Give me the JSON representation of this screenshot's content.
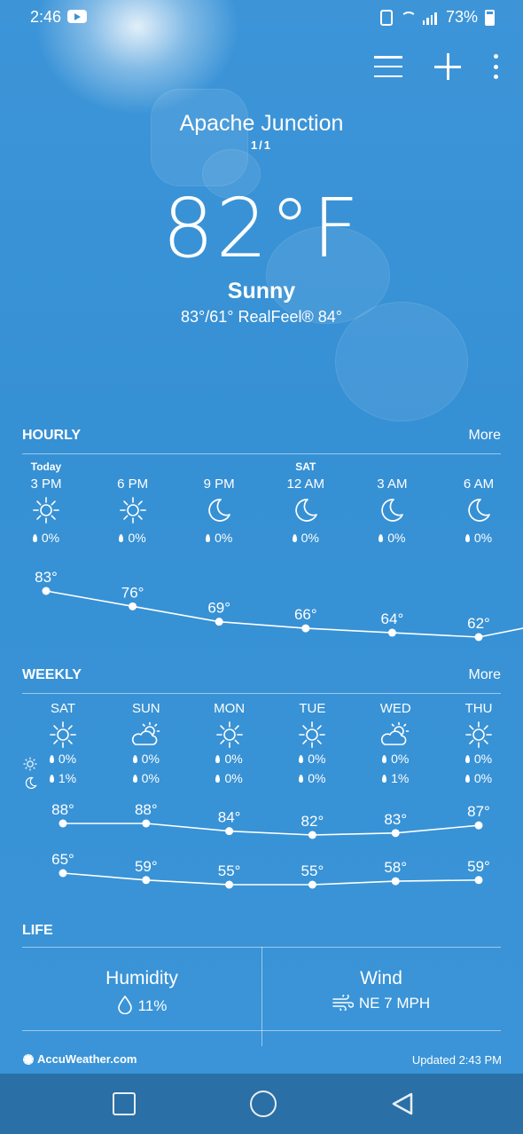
{
  "status_bar": {
    "time": "2:46",
    "battery": "73%"
  },
  "location": {
    "city": "Apache Junction",
    "pager": "1/1"
  },
  "current": {
    "temp": "82°F",
    "condition": "Sunny",
    "hilo_realfeel": "83°/61° RealFeel® 84°"
  },
  "hourly": {
    "title": "HOURLY",
    "more": "More",
    "items": [
      {
        "day": "Today",
        "time": "3 PM",
        "icon": "sun-icon",
        "precip": "0%",
        "temp": "83°",
        "value": 83
      },
      {
        "day": "",
        "time": "6 PM",
        "icon": "sun-icon",
        "precip": "0%",
        "temp": "76°",
        "value": 76
      },
      {
        "day": "",
        "time": "9 PM",
        "icon": "moon-icon",
        "precip": "0%",
        "temp": "69°",
        "value": 69
      },
      {
        "day": "SAT",
        "time": "12 AM",
        "icon": "moon-icon",
        "precip": "0%",
        "temp": "66°",
        "value": 66
      },
      {
        "day": "",
        "time": "3 AM",
        "icon": "moon-icon",
        "precip": "0%",
        "temp": "64°",
        "value": 64
      },
      {
        "day": "",
        "time": "6 AM",
        "icon": "moon-icon",
        "precip": "0%",
        "temp": "62°",
        "value": 62
      }
    ]
  },
  "weekly": {
    "title": "WEEKLY",
    "more": "More",
    "days": [
      {
        "day": "SAT",
        "icon": "sun-icon",
        "day_precip": "0%",
        "night_precip": "1%",
        "high": "88°",
        "low": "65°",
        "high_v": 88,
        "low_v": 65
      },
      {
        "day": "SUN",
        "icon": "partly-cloudy-icon",
        "day_precip": "0%",
        "night_precip": "0%",
        "high": "88°",
        "low": "59°",
        "high_v": 88,
        "low_v": 59
      },
      {
        "day": "MON",
        "icon": "sun-icon",
        "day_precip": "0%",
        "night_precip": "0%",
        "high": "84°",
        "low": "55°",
        "high_v": 84,
        "low_v": 55
      },
      {
        "day": "TUE",
        "icon": "sun-icon",
        "day_precip": "0%",
        "night_precip": "0%",
        "high": "82°",
        "low": "55°",
        "high_v": 82,
        "low_v": 55
      },
      {
        "day": "WED",
        "icon": "partly-cloudy-icon",
        "day_precip": "0%",
        "night_precip": "1%",
        "high": "83°",
        "low": "58°",
        "high_v": 83,
        "low_v": 58
      },
      {
        "day": "THU",
        "icon": "sun-icon",
        "day_precip": "0%",
        "night_precip": "0%",
        "high": "87°",
        "low": "59°",
        "high_v": 87,
        "low_v": 59
      }
    ]
  },
  "life": {
    "title": "LIFE",
    "humidity_label": "Humidity",
    "humidity_value": "11%",
    "wind_label": "Wind",
    "wind_value": "NE 7 MPH"
  },
  "footer": {
    "brand": "AccuWeather.com",
    "updated": "Updated 2:43 PM"
  }
}
